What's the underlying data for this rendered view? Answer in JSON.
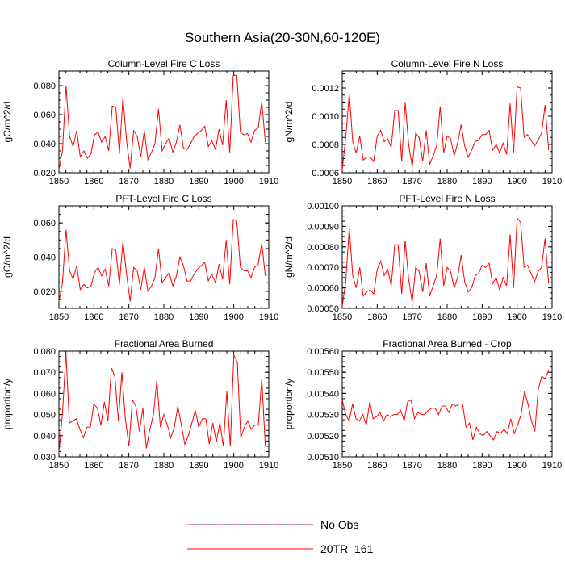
{
  "figure": {
    "title": "Southern Asia(20-30N,60-120E)"
  },
  "legend": {
    "items": [
      {
        "label": "No Obs",
        "style": "dashed",
        "colors": [
          "#e02020",
          "#2020ff"
        ]
      },
      {
        "label": "20TR_161",
        "style": "solid",
        "colors": [
          "#ff0000"
        ]
      }
    ]
  },
  "chart_data": [
    {
      "type": "line",
      "title": "Column-Level Fire C Loss",
      "ylabel": "gC/m^2/d",
      "xlabel": "",
      "xlim": [
        1850,
        1910
      ],
      "xticks": [
        1850,
        1860,
        1870,
        1880,
        1890,
        1900,
        1910
      ],
      "ylim": [
        0.02,
        0.09
      ],
      "yticks": [
        0.02,
        0.04,
        0.06,
        0.08
      ],
      "ytick_labels": [
        "0.020",
        "0.040",
        "0.060",
        "0.080"
      ],
      "ylabel_side": "left",
      "series": [
        {
          "name": "20TR_161",
          "color": "#ff0000",
          "values": [
            0.022,
            0.035,
            0.08,
            0.045,
            0.038,
            0.049,
            0.031,
            0.035,
            0.03,
            0.033,
            0.046,
            0.048,
            0.041,
            0.045,
            0.035,
            0.066,
            0.065,
            0.033,
            0.072,
            0.042,
            0.023,
            0.049,
            0.045,
            0.031,
            0.049,
            0.029,
            0.034,
            0.04,
            0.064,
            0.035,
            0.04,
            0.044,
            0.034,
            0.041,
            0.053,
            0.037,
            0.036,
            0.04,
            0.045,
            0.047,
            0.049,
            0.052,
            0.038,
            0.042,
            0.036,
            0.05,
            0.039,
            0.07,
            0.034,
            0.087,
            0.087,
            0.048,
            0.046,
            0.047,
            0.041,
            0.049,
            0.051,
            0.069,
            0.041
          ]
        }
      ]
    },
    {
      "type": "line",
      "title": "Column-Level Fire N Loss",
      "ylabel": "gN/m^2/d",
      "xlabel": "",
      "xlim": [
        1850,
        1910
      ],
      "xticks": [
        1850,
        1860,
        1870,
        1880,
        1890,
        1900,
        1910
      ],
      "ylim": [
        0.0006,
        0.00132
      ],
      "yticks": [
        0.0006,
        0.0008,
        0.001,
        0.0012
      ],
      "ytick_labels": [
        "0.0006",
        "0.0008",
        "0.0010",
        "0.0012"
      ],
      "ylabel_side": "right",
      "series": [
        {
          "name": "20TR_161",
          "color": "#ff0000",
          "values": [
            0.00062,
            0.00085,
            0.00116,
            0.00082,
            0.00074,
            0.00086,
            0.00069,
            0.00071,
            0.00071,
            0.00068,
            0.00086,
            0.0009,
            0.00082,
            0.00084,
            0.00078,
            0.00104,
            0.00104,
            0.00068,
            0.0011,
            0.0008,
            0.00064,
            0.00088,
            0.00085,
            0.00068,
            0.0009,
            0.00066,
            0.00072,
            0.00079,
            0.00107,
            0.00074,
            0.00086,
            0.00084,
            0.00072,
            0.00081,
            0.00094,
            0.00079,
            0.00071,
            0.00076,
            0.00082,
            0.00083,
            0.00087,
            0.00087,
            0.0009,
            0.00076,
            0.0008,
            0.00074,
            0.00081,
            0.00073,
            0.00109,
            0.00074,
            0.00121,
            0.0012,
            0.00085,
            0.00087,
            0.00083,
            0.00079,
            0.00083,
            0.00088,
            0.00108,
            0.00076
          ]
        }
      ]
    },
    {
      "type": "line",
      "title": "PFT-Level Fire C Loss",
      "ylabel": "gC/m^2/d",
      "xlabel": "",
      "xlim": [
        1850,
        1910
      ],
      "xticks": [
        1850,
        1860,
        1870,
        1880,
        1890,
        1900,
        1910
      ],
      "ylim": [
        0.01,
        0.07
      ],
      "yticks": [
        0.02,
        0.04,
        0.06
      ],
      "ytick_labels": [
        "0.020",
        "0.040",
        "0.060"
      ],
      "ylabel_side": "left",
      "series": [
        {
          "name": "20TR_161",
          "color": "#ff0000",
          "values": [
            0.014,
            0.025,
            0.056,
            0.032,
            0.027,
            0.035,
            0.021,
            0.024,
            0.022,
            0.023,
            0.031,
            0.034,
            0.029,
            0.033,
            0.023,
            0.045,
            0.044,
            0.024,
            0.049,
            0.03,
            0.014,
            0.034,
            0.032,
            0.021,
            0.034,
            0.02,
            0.023,
            0.028,
            0.045,
            0.025,
            0.028,
            0.031,
            0.023,
            0.029,
            0.04,
            0.035,
            0.026,
            0.026,
            0.03,
            0.033,
            0.035,
            0.037,
            0.026,
            0.03,
            0.025,
            0.036,
            0.027,
            0.05,
            0.024,
            0.062,
            0.061,
            0.034,
            0.032,
            0.032,
            0.028,
            0.034,
            0.036,
            0.048,
            0.029
          ]
        }
      ]
    },
    {
      "type": "line",
      "title": "PFT-Level Fire N Loss",
      "ylabel": "gN/m^2/d",
      "xlabel": "",
      "xlim": [
        1850,
        1910
      ],
      "xticks": [
        1850,
        1860,
        1870,
        1880,
        1890,
        1900,
        1910
      ],
      "ylim": [
        0.0005,
        0.001
      ],
      "yticks": [
        0.0005,
        0.0006,
        0.0007,
        0.0008,
        0.0009,
        0.001
      ],
      "ytick_labels": [
        "0.00050",
        "0.00060",
        "0.00070",
        "0.00080",
        "0.00090",
        "0.00100"
      ],
      "ylabel_side": "right",
      "series": [
        {
          "name": "20TR_161",
          "color": "#ff0000",
          "values": [
            0.00051,
            0.00063,
            0.00089,
            0.00066,
            0.0006,
            0.0007,
            0.00056,
            0.00058,
            0.00059,
            0.00057,
            0.00069,
            0.00073,
            0.00066,
            0.00069,
            0.00061,
            0.00081,
            0.00081,
            0.00057,
            0.00083,
            0.00064,
            0.00053,
            0.0007,
            0.00068,
            0.00058,
            0.00072,
            0.00056,
            0.00061,
            0.00066,
            0.00084,
            0.00061,
            0.0007,
            0.00068,
            0.0006,
            0.00065,
            0.00076,
            0.00063,
            0.00058,
            0.0006,
            0.00066,
            0.00067,
            0.00071,
            0.0007,
            0.00072,
            0.00062,
            0.00065,
            0.00059,
            0.00065,
            0.00061,
            0.00086,
            0.0006,
            0.00094,
            0.00092,
            0.0007,
            0.00071,
            0.00067,
            0.00063,
            0.00068,
            0.0007,
            0.00084,
            0.00062
          ]
        }
      ]
    },
    {
      "type": "line",
      "title": "Fractional Area Burned",
      "ylabel": "proportion/y",
      "xlabel": "",
      "xlim": [
        1850,
        1910
      ],
      "xticks": [
        1850,
        1860,
        1870,
        1880,
        1890,
        1900,
        1910
      ],
      "ylim": [
        0.03,
        0.08
      ],
      "yticks": [
        0.03,
        0.04,
        0.05,
        0.06,
        0.07,
        0.08
      ],
      "ytick_labels": [
        "0.030",
        "0.040",
        "0.050",
        "0.060",
        "0.070",
        "0.080"
      ],
      "ylabel_side": "left",
      "series": [
        {
          "name": "20TR_161",
          "color": "#ff0000",
          "values": [
            0.032,
            0.05,
            0.079,
            0.046,
            0.047,
            0.048,
            0.043,
            0.039,
            0.044,
            0.044,
            0.055,
            0.053,
            0.045,
            0.056,
            0.047,
            0.072,
            0.068,
            0.047,
            0.07,
            0.048,
            0.035,
            0.057,
            0.054,
            0.042,
            0.053,
            0.034,
            0.043,
            0.05,
            0.066,
            0.044,
            0.05,
            0.045,
            0.039,
            0.044,
            0.054,
            0.045,
            0.036,
            0.04,
            0.046,
            0.052,
            0.044,
            0.048,
            0.048,
            0.036,
            0.046,
            0.037,
            0.046,
            0.035,
            0.061,
            0.035,
            0.078,
            0.075,
            0.039,
            0.044,
            0.047,
            0.043,
            0.045,
            0.045,
            0.067,
            0.035
          ]
        }
      ]
    },
    {
      "type": "line",
      "title": "Fractional Area Burned - Crop",
      "ylabel": "proportion/y",
      "xlabel": "",
      "xlim": [
        1850,
        1910
      ],
      "xticks": [
        1850,
        1860,
        1870,
        1880,
        1890,
        1900,
        1910
      ],
      "ylim": [
        0.0051,
        0.0056
      ],
      "yticks": [
        0.0051,
        0.0052,
        0.0053,
        0.0054,
        0.0055,
        0.0056
      ],
      "ytick_labels": [
        "0.00510",
        "0.00520",
        "0.00530",
        "0.00540",
        "0.00550",
        "0.00560"
      ],
      "ylabel_side": "right",
      "series": [
        {
          "name": "20TR_161",
          "color": "#ff0000",
          "values": [
            0.00537,
            0.0053,
            0.00527,
            0.00535,
            0.00528,
            0.00527,
            0.0053,
            0.00525,
            0.00536,
            0.00528,
            0.00529,
            0.00531,
            0.00527,
            0.0053,
            0.00529,
            0.0053,
            0.0053,
            0.00532,
            0.00527,
            0.00536,
            0.00537,
            0.00528,
            0.00531,
            0.0053,
            0.0053,
            0.00532,
            0.00533,
            0.00533,
            0.0053,
            0.00534,
            0.00534,
            0.00531,
            0.00535,
            0.00534,
            0.00535,
            0.00535,
            0.00524,
            0.00526,
            0.00518,
            0.00524,
            0.00521,
            0.0052,
            0.00522,
            0.0052,
            0.00518,
            0.00522,
            0.00521,
            0.00523,
            0.00521,
            0.00528,
            0.00521,
            0.00525,
            0.0053,
            0.00541,
            0.00535,
            0.00527,
            0.00522,
            0.00542,
            0.00548,
            0.00547,
            0.00551
          ]
        }
      ]
    }
  ]
}
